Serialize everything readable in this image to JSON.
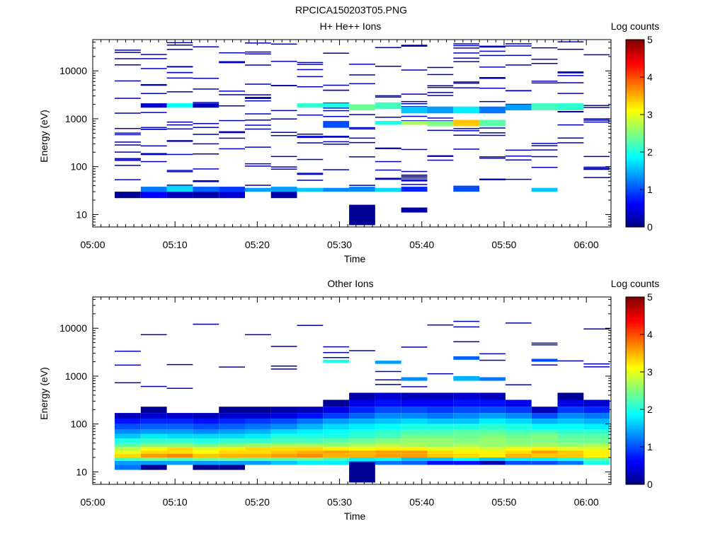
{
  "figure_title": "RPCICA150203T05.PNG",
  "chart_data": [
    {
      "type": "heatmap",
      "title": "H+ He++ Ions",
      "xlabel": "Time",
      "ylabel": "Energy (eV)",
      "x_ticks": [
        "05:00",
        "05:10",
        "05:20",
        "05:30",
        "05:40",
        "05:50",
        "06:00"
      ],
      "xlim": [
        "05:00",
        "06:03"
      ],
      "y_scale": "log",
      "y_ticks": [
        10,
        100,
        1000,
        10000
      ],
      "y_tick_labels": [
        "10",
        "100",
        "1000",
        "10000"
      ],
      "ylim": [
        5.5,
        45000
      ],
      "colorbar": {
        "label": "Log counts",
        "range": [
          0,
          5
        ],
        "ticks": [
          "0",
          "1",
          "2",
          "3",
          "4",
          "5"
        ],
        "colormap": "jet"
      },
      "time_bins": [
        "05:02:40",
        "05:05:50",
        "05:09:00",
        "05:12:10",
        "05:15:20",
        "05:18:30",
        "05:21:40",
        "05:24:50",
        "05:28:00",
        "05:31:10",
        "05:34:20",
        "05:37:30",
        "05:40:40",
        "05:43:50",
        "05:47:00",
        "05:50:10",
        "05:53:20",
        "05:56:30",
        "05:59:40"
      ],
      "cells": [
        {
          "t": "05:04",
          "e": [
            22,
            30
          ],
          "v": 0.1
        },
        {
          "t": "05:07",
          "e": [
            22,
            30
          ],
          "v": 0.6
        },
        {
          "t": "05:07",
          "e": [
            30,
            38
          ],
          "v": 1.2
        },
        {
          "t": "05:10",
          "e": [
            22,
            30
          ],
          "v": 0.3
        },
        {
          "t": "05:10",
          "e": [
            30,
            40
          ],
          "v": 1.7
        },
        {
          "t": "05:13",
          "e": [
            22,
            30
          ],
          "v": 0.2
        },
        {
          "t": "05:13",
          "e": [
            30,
            38
          ],
          "v": 1.1
        },
        {
          "t": "05:16",
          "e": [
            22,
            30
          ],
          "v": 0.4
        },
        {
          "t": "05:16",
          "e": [
            30,
            38
          ],
          "v": 0.9
        },
        {
          "t": "05:20",
          "e": [
            30,
            36
          ],
          "v": 1.4
        },
        {
          "t": "05:23",
          "e": [
            22,
            30
          ],
          "v": 0.2
        },
        {
          "t": "05:23",
          "e": [
            30,
            38
          ],
          "v": 1.4
        },
        {
          "t": "05:26",
          "e": [
            30,
            36
          ],
          "v": 1.6
        },
        {
          "t": "05:29",
          "e": [
            30,
            36
          ],
          "v": 1.3
        },
        {
          "t": "05:33",
          "e": [
            6,
            16
          ],
          "v": 0.1
        },
        {
          "t": "05:33",
          "e": [
            30,
            38
          ],
          "v": 1.3
        },
        {
          "t": "05:36",
          "e": [
            30,
            36
          ],
          "v": 1.7
        },
        {
          "t": "05:39",
          "e": [
            11,
            14
          ],
          "v": 0.2
        },
        {
          "t": "05:39",
          "e": [
            30,
            38
          ],
          "v": 0.8
        },
        {
          "t": "05:46",
          "e": [
            30,
            40
          ],
          "v": 1.0
        },
        {
          "t": "05:55",
          "e": [
            30,
            36
          ],
          "v": 1.6
        },
        {
          "t": "05:07",
          "e": [
            1700,
            2100
          ],
          "v": 0.4
        },
        {
          "t": "05:10",
          "e": [
            1700,
            2100
          ],
          "v": 1.9
        },
        {
          "t": "05:13",
          "e": [
            1700,
            2100
          ],
          "v": 0.3
        },
        {
          "t": "05:26",
          "e": [
            1700,
            2100
          ],
          "v": 2.1
        },
        {
          "t": "05:29",
          "e": [
            1700,
            2100
          ],
          "v": 2.0
        },
        {
          "t": "05:33",
          "e": [
            1500,
            2000
          ],
          "v": 2.4
        },
        {
          "t": "05:36",
          "e": [
            1600,
            2200
          ],
          "v": 2.2
        },
        {
          "t": "05:39",
          "e": [
            1300,
            1800
          ],
          "v": 1.6
        },
        {
          "t": "05:42",
          "e": [
            1300,
            1800
          ],
          "v": 1.4
        },
        {
          "t": "05:46",
          "e": [
            1300,
            1800
          ],
          "v": 1.8
        },
        {
          "t": "05:49",
          "e": [
            1300,
            1800
          ],
          "v": 1.2
        },
        {
          "t": "05:52",
          "e": [
            1500,
            2000
          ],
          "v": 1.4
        },
        {
          "t": "05:56",
          "e": [
            1500,
            2100
          ],
          "v": 2.2
        },
        {
          "t": "05:59",
          "e": [
            1500,
            2100
          ],
          "v": 2.1
        },
        {
          "t": "05:42",
          "e": [
            700,
            900
          ],
          "v": 2.5
        },
        {
          "t": "05:46",
          "e": [
            700,
            950
          ],
          "v": 3.4
        },
        {
          "t": "05:49",
          "e": [
            700,
            950
          ],
          "v": 2.3
        },
        {
          "t": "05:39",
          "e": [
            750,
            900
          ],
          "v": 2.7
        },
        {
          "t": "05:36",
          "e": [
            750,
            900
          ],
          "v": 2.0
        },
        {
          "t": "05:29",
          "e": [
            650,
            900
          ],
          "v": 1.0
        }
      ],
      "sparse_note": "many scattered single low-count bins (Log counts about 0) between 20 eV and 45000 eV"
    },
    {
      "type": "heatmap",
      "title": "Other Ions",
      "xlabel": "Time",
      "ylabel": "Energy (eV)",
      "x_ticks": [
        "05:00",
        "05:10",
        "05:20",
        "05:30",
        "05:40",
        "05:50",
        "06:00"
      ],
      "xlim": [
        "05:00",
        "06:03"
      ],
      "y_scale": "log",
      "y_ticks": [
        10,
        100,
        1000,
        10000
      ],
      "y_tick_labels": [
        "10",
        "100",
        "1000",
        "10000"
      ],
      "ylim": [
        5.5,
        45000
      ],
      "colorbar": {
        "label": "Log counts",
        "range": [
          0,
          5
        ],
        "ticks": [
          "0",
          "1",
          "2",
          "3",
          "4",
          "5"
        ],
        "colormap": "jet"
      },
      "time_bins": [
        "05:02:40",
        "05:05:50",
        "05:09:00",
        "05:12:10",
        "05:15:20",
        "05:18:30",
        "05:21:40",
        "05:24:50",
        "05:28:00",
        "05:31:10",
        "05:34:20",
        "05:37:30",
        "05:40:40",
        "05:43:50",
        "05:47:00",
        "05:50:10",
        "05:53:20",
        "05:56:30",
        "05:59:40"
      ],
      "band_profile": [
        {
          "e": [
            11,
            14
          ],
          "v": [
            1.2,
            0.1,
            0,
            0.1,
            0.1,
            0,
            0,
            0,
            0,
            0,
            0,
            0,
            0,
            0,
            0,
            0,
            0,
            0,
            0
          ]
        },
        {
          "e": [
            14,
            17
          ],
          "v": [
            1.4,
            1.4,
            1.4,
            1.4,
            1.4,
            1.4,
            1.6,
            1.8,
            1.8,
            1.3,
            1.2,
            1.1,
            0.7,
            0.7,
            0.2,
            1.0,
            1.0,
            1.2,
            2.0
          ]
        },
        {
          "e": [
            17,
            20
          ],
          "v": [
            2.2,
            2.4,
            2.2,
            2.4,
            2.4,
            2.3,
            2.3,
            2.4,
            2.2,
            1.8,
            1.9,
            1.6,
            1.6,
            1.9,
            1.6,
            1.8,
            1.8,
            2.0,
            2.3
          ]
        },
        {
          "e": [
            20,
            24
          ],
          "v": [
            3.3,
            3.6,
            3.7,
            3.4,
            3.5,
            3.5,
            3.6,
            3.7,
            3.5,
            3.5,
            3.6,
            3.6,
            3.4,
            3.3,
            3.2,
            3.5,
            3.4,
            3.4,
            3.2
          ]
        },
        {
          "e": [
            24,
            28
          ],
          "v": [
            3.0,
            3.3,
            3.3,
            3.1,
            3.3,
            3.3,
            3.4,
            3.5,
            3.6,
            3.5,
            3.6,
            3.6,
            3.3,
            3.2,
            3.2,
            3.3,
            3.6,
            3.4,
            3.2
          ]
        },
        {
          "e": [
            28,
            33
          ],
          "v": [
            2.8,
            3.1,
            3.3,
            3.0,
            3.2,
            3.3,
            3.3,
            3.3,
            3.2,
            3.1,
            3.2,
            3.2,
            3.0,
            3.0,
            2.9,
            3.1,
            3.2,
            3.0,
            3.0
          ]
        },
        {
          "e": [
            33,
            40
          ],
          "v": [
            2.3,
            2.5,
            2.5,
            2.4,
            2.5,
            2.6,
            2.7,
            2.7,
            2.6,
            2.7,
            2.8,
            2.7,
            2.6,
            2.7,
            2.6,
            2.6,
            2.7,
            2.6,
            2.7
          ]
        },
        {
          "e": [
            40,
            50
          ],
          "v": [
            2.0,
            2.1,
            2.1,
            2.0,
            2.1,
            2.1,
            2.2,
            2.2,
            2.3,
            2.4,
            2.5,
            2.6,
            2.6,
            2.5,
            2.6,
            2.5,
            2.5,
            2.4,
            2.4
          ]
        },
        {
          "e": [
            50,
            62
          ],
          "v": [
            1.6,
            1.8,
            1.7,
            1.7,
            1.7,
            1.8,
            2.0,
            2.0,
            2.0,
            2.1,
            2.2,
            2.4,
            2.4,
            2.4,
            2.5,
            2.4,
            2.5,
            2.3,
            2.3
          ]
        },
        {
          "e": [
            62,
            78
          ],
          "v": [
            1.3,
            1.4,
            1.4,
            1.3,
            1.4,
            1.5,
            1.7,
            1.8,
            1.9,
            2.0,
            2.1,
            2.2,
            2.2,
            2.3,
            2.3,
            2.2,
            2.2,
            2.1,
            2.1
          ]
        },
        {
          "e": [
            78,
            100
          ],
          "v": [
            1.0,
            1.1,
            1.1,
            1.0,
            1.1,
            1.2,
            1.3,
            1.5,
            1.7,
            1.8,
            1.9,
            2.0,
            2.0,
            2.0,
            2.1,
            2.0,
            1.9,
            1.9,
            1.8
          ]
        },
        {
          "e": [
            100,
            130
          ],
          "v": [
            0.7,
            0.8,
            0.8,
            0.7,
            0.8,
            0.9,
            1.0,
            1.2,
            1.4,
            1.5,
            1.6,
            1.7,
            1.6,
            1.6,
            1.8,
            1.7,
            1.5,
            1.6,
            1.5
          ]
        },
        {
          "e": [
            130,
            170
          ],
          "v": [
            0.3,
            0.4,
            0.4,
            0.3,
            0.4,
            0.4,
            0.5,
            0.7,
            0.9,
            1.1,
            1.3,
            1.3,
            1.2,
            1.3,
            1.4,
            1.3,
            1.0,
            1.3,
            1.2
          ]
        },
        {
          "e": [
            170,
            230
          ],
          "v": [
            0,
            0.1,
            0,
            0,
            0.1,
            0.1,
            0.2,
            0.3,
            0.5,
            0.8,
            1.0,
            1.0,
            0.9,
            1.0,
            1.0,
            0.9,
            0.3,
            0.9,
            0.8
          ]
        },
        {
          "e": [
            230,
            320
          ],
          "v": [
            0,
            0,
            0,
            0,
            0,
            0,
            0,
            0,
            0.1,
            0.5,
            0.7,
            0.6,
            0.6,
            0.7,
            0.7,
            0.5,
            0,
            0.5,
            0.4
          ]
        },
        {
          "e": [
            320,
            450
          ],
          "v": [
            0,
            0,
            0,
            0,
            0,
            0,
            0,
            0,
            0,
            0.2,
            0.4,
            0.3,
            0.3,
            0.4,
            0.3,
            0,
            0,
            0.1,
            0
          ]
        }
      ],
      "upper_cells": [
        {
          "t": "05:33",
          "e": [
            6,
            16
          ],
          "v": 0.1
        },
        {
          "t": "05:39",
          "e": [
            800,
            950
          ],
          "v": 1.3
        },
        {
          "t": "05:46",
          "e": [
            800,
            1000
          ],
          "v": 1.5
        },
        {
          "t": "05:49",
          "e": [
            800,
            950
          ],
          "v": 1.2
        },
        {
          "t": "05:46",
          "e": [
            2200,
            2600
          ],
          "v": 1.1
        },
        {
          "t": "05:56",
          "e": [
            2000,
            2300
          ],
          "v": 1.0
        },
        {
          "t": "05:29",
          "e": [
            1900,
            2200
          ],
          "v": 2.0
        },
        {
          "t": "05:36",
          "e": [
            1800,
            2100
          ],
          "v": 1.4
        }
      ],
      "sparse_note": "scattered single low-count bins (Log counts about 0) up to about 17000 eV"
    }
  ]
}
